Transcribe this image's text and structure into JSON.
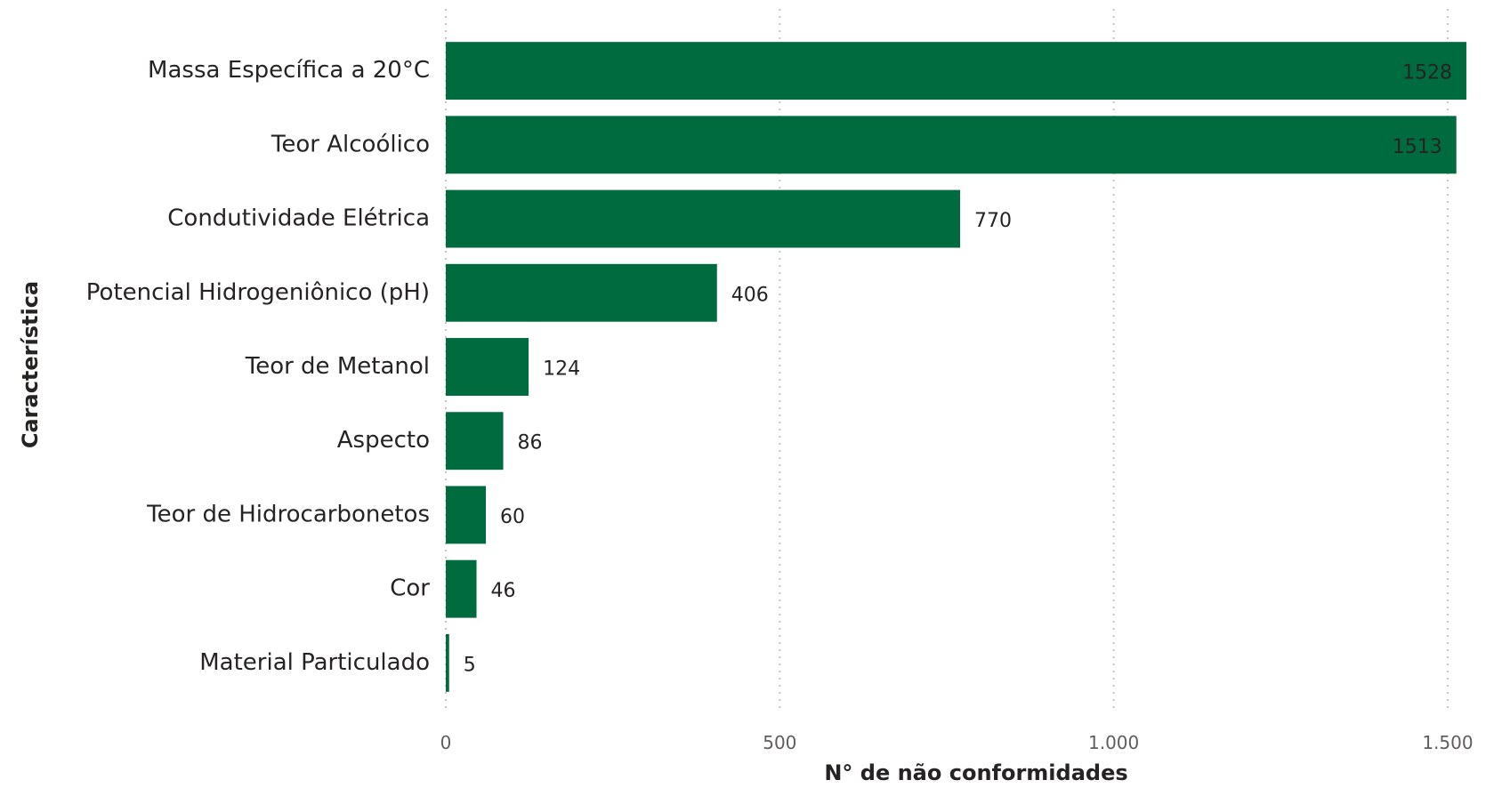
{
  "chart_data": {
    "type": "bar",
    "orientation": "horizontal",
    "categories": [
      "Massa Específica a 20°C",
      "Teor Alcoólico",
      "Condutividade Elétrica",
      "Potencial Hidrogeniônico (pH)",
      "Teor de Metanol",
      "Aspecto",
      "Teor de Hidrocarbonetos",
      "Cor",
      "Material Particulado"
    ],
    "values": [
      1528,
      1513,
      770,
      406,
      124,
      86,
      60,
      46,
      5
    ],
    "data_labels": [
      "1528",
      "1513",
      "770",
      "406",
      "124",
      "86",
      "60",
      "46",
      "5"
    ],
    "xlabel": "N° de não conformidades",
    "ylabel": "Característica",
    "xlim": [
      0,
      1580
    ],
    "x_ticks": [
      0,
      500,
      1000,
      1500
    ],
    "x_tick_labels": [
      "0",
      "500",
      "1.000",
      "1.500"
    ],
    "grid": "vertical dotted",
    "bar_color": "#006b3f"
  }
}
